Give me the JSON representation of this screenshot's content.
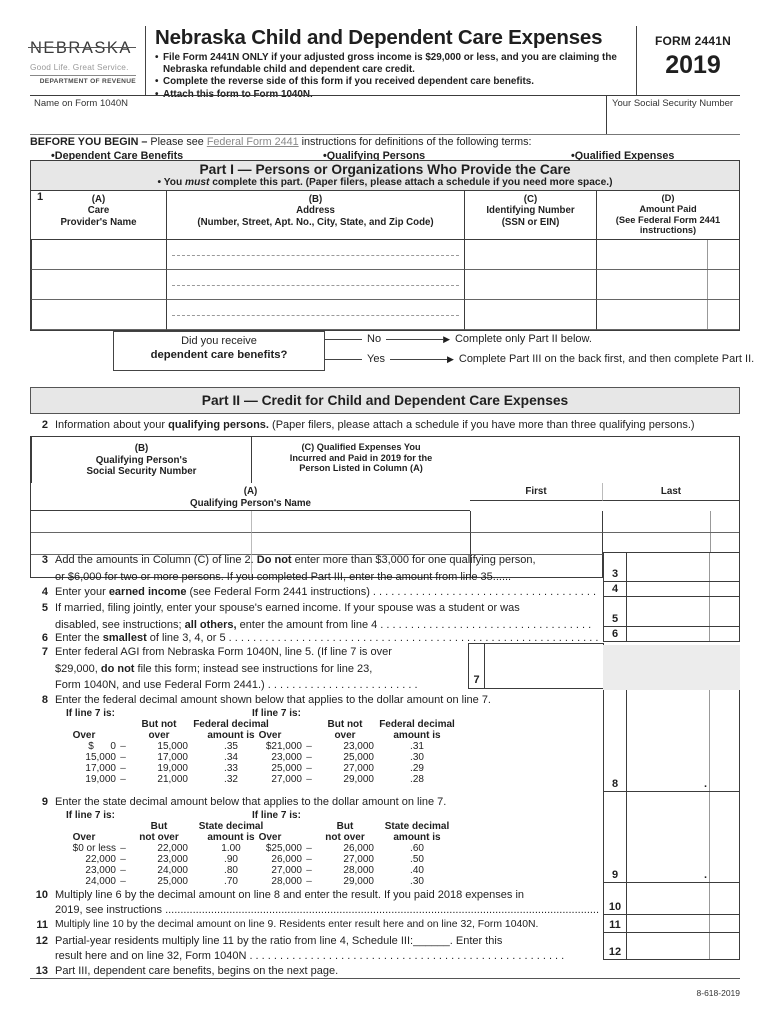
{
  "header": {
    "logo_name": "NEBRASKA",
    "logo_tagline": "Good Life. Great Service.",
    "logo_dept": "DEPARTMENT OF REVENUE",
    "title": "Nebraska Child and Dependent Care Expenses",
    "bullet_char": "•",
    "bullets": [
      "File Form 2441N ONLY if your adjusted gross income is $29,000 or less, and you are claiming the Nebraska refundable child and dependent care credit.",
      "Complete the reverse side of this form if you received dependent care benefits.",
      "Attach this form to Form 1040N."
    ],
    "form_label": "FORM 2441N",
    "year": "2019"
  },
  "name_row": {
    "name_label": "Name on Form 1040N",
    "ssn_label": "Your Social Security Number"
  },
  "before": {
    "bold": "BEFORE YOU BEGIN –",
    "pre": " Please see ",
    "link": "Federal Form 2441",
    "post": " instructions for definitions of the following terms:",
    "terms": [
      "•Dependent Care Benefits",
      "•Qualifying Persons",
      "•Qualified Expenses"
    ]
  },
  "part1": {
    "title": "Part I — Persons or Organizations Who Provide the Care",
    "sub_pre": "• You ",
    "sub_it": "must",
    "sub_post": " complete this part. (Paper filers, please attach a schedule if you need more space.)",
    "row_num": "1",
    "col_a": [
      "(A)",
      "Care",
      "Provider's Name"
    ],
    "col_b": [
      "(B)",
      "Address",
      "(Number, Street, Apt. No., City, State, and Zip Code)"
    ],
    "col_c": [
      "(C)",
      "Identifying Number",
      "(SSN or EIN)"
    ],
    "col_d": [
      "(D)",
      "Amount Paid",
      "(See Federal Form 2441",
      "instructions)"
    ]
  },
  "benefits_question": {
    "line1": "Did you receive",
    "line2": "dependent care benefits?",
    "no_label": "No",
    "no_text": "Complete only Part II below.",
    "yes_label": "Yes",
    "yes_text": "Complete Part III on the back first, and then complete Part II.",
    "arrow_char": "▶"
  },
  "part2": {
    "title": "Part II — Credit for Child and Dependent Care Expenses",
    "line2_num": "2",
    "line2_pre": "Information about your ",
    "line2_bold": "qualifying persons.",
    "line2_post": " (Paper filers, please attach a schedule if you have more than three qualifying persons.)",
    "col_a": [
      "(A)",
      "Qualifying Person's Name"
    ],
    "col_first": "First",
    "col_last": "Last",
    "col_b": [
      "(B)",
      "Qualifying Person's",
      "Social Security Number"
    ],
    "col_c": [
      "(C) Qualified Expenses You",
      "Incurred and Paid in 2019 for the",
      "Person Listed in Column (A)"
    ]
  },
  "lines": {
    "l3": {
      "num": "3",
      "t1a": "Add the amounts in Column (C) of line 2. ",
      "t1b": "Do not",
      "t1c": " enter more than $3,000 for one qualifying person,",
      "t2": "or $6,000 for two or more persons. If you completed Part III, enter the amount from line 35......"
    },
    "l4": {
      "num": "4",
      "a": "Enter your ",
      "b": "earned income",
      "c": " (see Federal Form 2441 instructions) . . . . . . . . . . . . . . . . . . . . . . . . . . . . . . . . . . . . . ."
    },
    "l5": {
      "num": "5",
      "t1": "If married, filing jointly, enter your spouse's earned income. If your spouse was a student or was",
      "t2a": "disabled, see instructions; ",
      "t2b": "all others,",
      "t2c": " enter the amount from line 4 . . . . . . . . . . . . . . . . . . . . . . . . . . . . . . . . . . ."
    },
    "l6": {
      "num": "6",
      "a": "Enter the ",
      "b": "smallest",
      "c": " of line 3, 4, or 5 . . . . . . . . . . . . . . . . . . . . . . . . . . . . . . . . . . . . . . . . . . . . . . . . . . . . . . . . . . . . . . . ."
    },
    "l7": {
      "num": "7",
      "t1": "Enter federal AGI from Nebraska Form 1040N, line 5. (If line 7 is over",
      "t2a": "$29,000, ",
      "t2b": "do not",
      "t2c": " file this form; instead see instructions for line 23,",
      "t3": "Form 1040N, and use Federal Form 2441.)  . . . . . . . . . . . . . . . . . . . . . . . . ."
    },
    "l8": {
      "num": "8",
      "head": "Enter the federal decimal amount shown below that applies to the dollar amount on line 7."
    },
    "l9": {
      "num": "9",
      "head": "Enter the state decimal amount below that applies to the dollar amount on line 7."
    },
    "l10": {
      "num": "10",
      "t1": "Multiply line 6 by the decimal amount on line 8 and enter the result. If you paid 2018 expenses in",
      "t2": "2019, see instructions ................................................................................................................................................"
    },
    "l11": {
      "num": "11",
      "t1": "Multiply line 10 by the decimal amount on line 9. Residents enter result here and on line 32, Form 1040N."
    },
    "l12": {
      "num": "12",
      "t1": "Partial-year residents multiply line 11 by the ratio from line 4, Schedule III:______. Enter this",
      "t2": "result here and on line 32, Form 1040N . . . . . . . . . . . . . . . . . . . . . . . . . . . . . . . . . . . . . . . . . . . . . . . . . . . ."
    },
    "l13": {
      "num": "13",
      "t1": "Part III, dependent care benefits, begins on the next page."
    },
    "decimal_point": "."
  },
  "fed_table": {
    "if_label": "If line 7 is:",
    "header": [
      {
        "over": "",
        "d": "",
        "but": "But not",
        "amt": "Federal decimal"
      },
      {
        "over": "Over",
        "d": "",
        "but": "over",
        "amt": "amount is"
      }
    ],
    "left_rows": [
      {
        "over": "$      0",
        "d": "–",
        "but": "15,000",
        "amt": ".35"
      },
      {
        "over": "15,000",
        "d": "–",
        "but": "17,000",
        "amt": ".34"
      },
      {
        "over": "17,000",
        "d": "–",
        "but": "19,000",
        "amt": ".33"
      },
      {
        "over": "19,000",
        "d": "–",
        "but": "21,000",
        "amt": ".32"
      }
    ],
    "right_rows": [
      {
        "over": "$21,000",
        "d": "–",
        "but": "23,000",
        "amt": ".31"
      },
      {
        "over": "23,000",
        "d": "–",
        "but": "25,000",
        "amt": ".30"
      },
      {
        "over": "25,000",
        "d": "–",
        "but": "27,000",
        "amt": ".29"
      },
      {
        "over": "27,000",
        "d": "–",
        "but": "29,000",
        "amt": ".28"
      }
    ]
  },
  "state_table": {
    "if_label": "If line 7 is:",
    "header": [
      {
        "over": "",
        "d": "",
        "but": "But",
        "amt": "State decimal"
      },
      {
        "over": "Over",
        "d": "",
        "but": "not over",
        "amt": "amount is"
      }
    ],
    "left_rows": [
      {
        "over": "$0 or less",
        "d": "–",
        "but": "22,000",
        "amt": "1.00"
      },
      {
        "over": "22,000",
        "d": "–",
        "but": "23,000",
        "amt": ".90"
      },
      {
        "over": "23,000",
        "d": "–",
        "but": "24,000",
        "amt": ".80"
      },
      {
        "over": "24,000",
        "d": "–",
        "but": "25,000",
        "amt": ".70"
      }
    ],
    "right_rows": [
      {
        "over": "$25,000",
        "d": "–",
        "but": "26,000",
        "amt": ".60"
      },
      {
        "over": "26,000",
        "d": "–",
        "but": "27,000",
        "amt": ".50"
      },
      {
        "over": "27,000",
        "d": "–",
        "but": "28,000",
        "amt": ".40"
      },
      {
        "over": "28,000",
        "d": "–",
        "but": "29,000",
        "amt": ".30"
      }
    ]
  },
  "footer": "8-618-2019"
}
